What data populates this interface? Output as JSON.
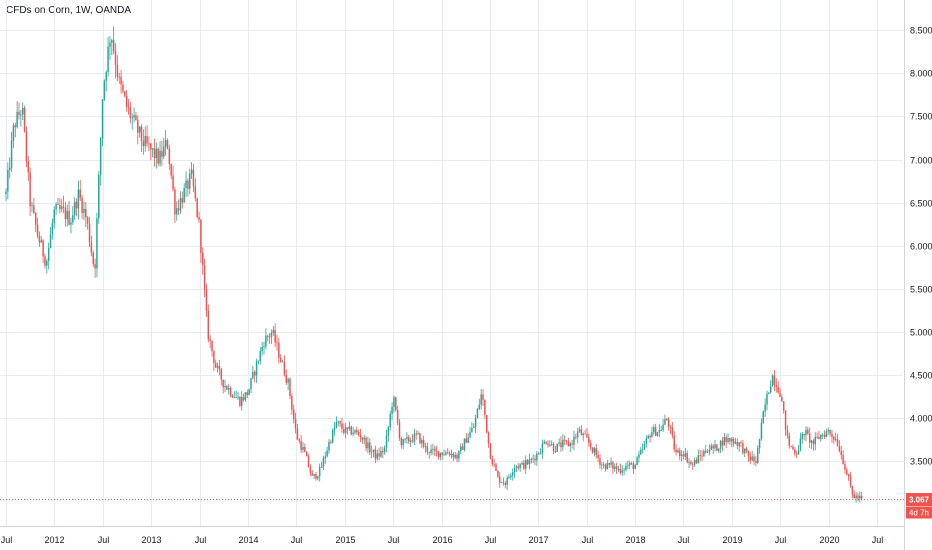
{
  "chart_data": {
    "type": "candlestick",
    "title": "CFDs on Corn, 1W, OANDA",
    "y_ticks": [
      "3.500",
      "4.000",
      "4.500",
      "5.000",
      "5.500",
      "6.000",
      "6.500",
      "7.000",
      "7.500",
      "8.000",
      "8.500"
    ],
    "x_ticks": [
      "Jul",
      "2012",
      "Jul",
      "2013",
      "Jul",
      "2014",
      "Jul",
      "2015",
      "Jul",
      "2016",
      "Jul",
      "2017",
      "Jul",
      "2018",
      "Jul",
      "2019",
      "Jul",
      "2020",
      "Jul"
    ],
    "x_tick_dates": [
      "2011-07",
      "2012-01",
      "2012-07",
      "2013-01",
      "2013-07",
      "2014-01",
      "2014-07",
      "2015-01",
      "2015-07",
      "2016-01",
      "2016-07",
      "2017-01",
      "2017-07",
      "2018-01",
      "2018-07",
      "2019-01",
      "2019-07",
      "2020-01",
      "2020-07"
    ],
    "ylim": [
      2.75,
      8.85
    ],
    "last_price": "3.067",
    "countdown": "4d 7h",
    "colors": {
      "up": "#26a69a",
      "down": "#ef5350",
      "price_label": "#ef5350",
      "grid": "#e8ecf2",
      "axis_text": "#131722"
    },
    "grid": true,
    "price_path": [
      [
        "2011-07",
        6.6
      ],
      [
        "2011-08",
        7.4
      ],
      [
        "2011-09",
        7.6
      ],
      [
        "2011-10",
        6.5
      ],
      [
        "2011-11",
        6.1
      ],
      [
        "2011-12",
        5.8
      ],
      [
        "2012-01",
        6.4
      ],
      [
        "2012-02",
        6.4
      ],
      [
        "2012-03",
        6.3
      ],
      [
        "2012-04",
        6.6
      ],
      [
        "2012-05",
        6.3
      ],
      [
        "2012-06",
        5.7
      ],
      [
        "2012-07",
        7.8
      ],
      [
        "2012-08",
        8.5
      ],
      [
        "2012-09",
        7.9
      ],
      [
        "2012-10",
        7.6
      ],
      [
        "2012-11",
        7.4
      ],
      [
        "2012-12",
        7.2
      ],
      [
        "2013-01",
        7.1
      ],
      [
        "2013-02",
        7.0
      ],
      [
        "2013-03",
        7.2
      ],
      [
        "2013-04",
        6.4
      ],
      [
        "2013-05",
        6.6
      ],
      [
        "2013-06",
        6.8
      ],
      [
        "2013-07",
        6.2
      ],
      [
        "2013-08",
        5.0
      ],
      [
        "2013-09",
        4.6
      ],
      [
        "2013-10",
        4.4
      ],
      [
        "2013-11",
        4.3
      ],
      [
        "2013-12",
        4.2
      ],
      [
        "2014-01",
        4.3
      ],
      [
        "2014-02",
        4.6
      ],
      [
        "2014-03",
        4.9
      ],
      [
        "2014-04",
        5.0
      ],
      [
        "2014-05",
        4.7
      ],
      [
        "2014-06",
        4.4
      ],
      [
        "2014-07",
        3.8
      ],
      [
        "2014-08",
        3.6
      ],
      [
        "2014-09",
        3.3
      ],
      [
        "2014-10",
        3.4
      ],
      [
        "2014-11",
        3.7
      ],
      [
        "2014-12",
        3.95
      ],
      [
        "2015-01",
        3.85
      ],
      [
        "2015-02",
        3.85
      ],
      [
        "2015-03",
        3.8
      ],
      [
        "2015-04",
        3.65
      ],
      [
        "2015-05",
        3.55
      ],
      [
        "2015-06",
        3.65
      ],
      [
        "2015-07",
        4.25
      ],
      [
        "2015-08",
        3.7
      ],
      [
        "2015-09",
        3.75
      ],
      [
        "2015-10",
        3.8
      ],
      [
        "2015-11",
        3.65
      ],
      [
        "2015-12",
        3.6
      ],
      [
        "2016-01",
        3.6
      ],
      [
        "2016-02",
        3.6
      ],
      [
        "2016-03",
        3.55
      ],
      [
        "2016-04",
        3.75
      ],
      [
        "2016-05",
        3.9
      ],
      [
        "2016-06",
        4.3
      ],
      [
        "2016-07",
        3.6
      ],
      [
        "2016-08",
        3.3
      ],
      [
        "2016-09",
        3.25
      ],
      [
        "2016-10",
        3.45
      ],
      [
        "2016-11",
        3.45
      ],
      [
        "2016-12",
        3.5
      ],
      [
        "2017-01",
        3.6
      ],
      [
        "2017-02",
        3.75
      ],
      [
        "2017-03",
        3.65
      ],
      [
        "2017-04",
        3.7
      ],
      [
        "2017-05",
        3.7
      ],
      [
        "2017-06",
        3.85
      ],
      [
        "2017-07",
        3.75
      ],
      [
        "2017-08",
        3.6
      ],
      [
        "2017-09",
        3.45
      ],
      [
        "2017-10",
        3.45
      ],
      [
        "2017-11",
        3.4
      ],
      [
        "2017-12",
        3.45
      ],
      [
        "2018-01",
        3.45
      ],
      [
        "2018-02",
        3.65
      ],
      [
        "2018-03",
        3.85
      ],
      [
        "2018-04",
        3.85
      ],
      [
        "2018-05",
        4.0
      ],
      [
        "2018-06",
        3.6
      ],
      [
        "2018-07",
        3.6
      ],
      [
        "2018-08",
        3.45
      ],
      [
        "2018-09",
        3.55
      ],
      [
        "2018-10",
        3.65
      ],
      [
        "2018-11",
        3.65
      ],
      [
        "2018-12",
        3.75
      ],
      [
        "2019-01",
        3.75
      ],
      [
        "2019-02",
        3.7
      ],
      [
        "2019-03",
        3.55
      ],
      [
        "2019-04",
        3.5
      ],
      [
        "2019-05",
        4.1
      ],
      [
        "2019-06",
        4.5
      ],
      [
        "2019-07",
        4.3
      ],
      [
        "2019-08",
        3.7
      ],
      [
        "2019-09",
        3.6
      ],
      [
        "2019-10",
        3.85
      ],
      [
        "2019-11",
        3.7
      ],
      [
        "2019-12",
        3.8
      ],
      [
        "2020-01",
        3.85
      ],
      [
        "2020-02",
        3.75
      ],
      [
        "2020-03",
        3.45
      ],
      [
        "2020-04",
        3.1
      ],
      [
        "2020-05",
        3.067
      ]
    ]
  }
}
